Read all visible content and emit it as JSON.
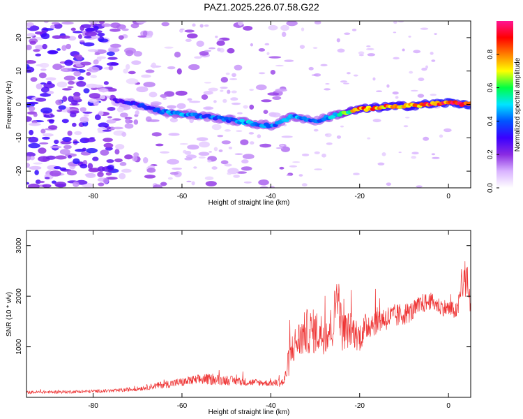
{
  "title": "PAZ1.2025.226.07.58.G22",
  "chart_data": [
    {
      "type": "heatmap",
      "xlabel": "Height of straight line (km)",
      "ylabel": "Frequency (Hz)",
      "xlim": [
        -95,
        5
      ],
      "ylim": [
        -25,
        25
      ],
      "xticks": [
        -80,
        -60,
        -40,
        -20,
        0
      ],
      "yticks": [
        -20,
        -10,
        0,
        10,
        20
      ],
      "colorbar": {
        "label": "Normalized spectral amplitude",
        "range": [
          0,
          1
        ],
        "ticks": [
          "0.0",
          "0.2",
          "0.4",
          "0.6",
          "0.8"
        ],
        "colors": [
          "#ffffff",
          "#d9b3ff",
          "#8a2be2",
          "#3a00ff",
          "#0055ff",
          "#00e5ff",
          "#00ff44",
          "#ffff00",
          "#ff7f00",
          "#ff0000",
          "#ff1493"
        ]
      },
      "ridge": {
        "x": [
          -75,
          -70,
          -65,
          -60,
          -55,
          -50,
          -45,
          -40,
          -35,
          -30,
          -25,
          -20,
          -15,
          -10,
          -5,
          0,
          5
        ],
        "y": [
          1,
          0,
          -2,
          -3,
          -3.5,
          -4.5,
          -5.5,
          -6.5,
          -3.5,
          -5,
          -3,
          -1.5,
          -0.8,
          -0.5,
          0,
          0.5,
          0
        ],
        "amplitude": [
          0.3,
          0.35,
          0.45,
          0.5,
          0.45,
          0.45,
          0.5,
          0.45,
          0.5,
          0.4,
          0.55,
          0.85,
          0.9,
          0.88,
          0.92,
          0.95,
          0.95
        ]
      }
    },
    {
      "type": "line",
      "xlabel": "Height of straight line (km)",
      "ylabel": "SNR (10 * v/v)",
      "xlim": [
        -95,
        5
      ],
      "ylim": [
        0,
        3300
      ],
      "xticks": [
        -80,
        -60,
        -40,
        -20,
        0
      ],
      "yticks": [
        1000,
        2000,
        3000
      ],
      "color": "#ee3333",
      "envelope": {
        "x": [
          -95,
          -85,
          -75,
          -70,
          -65,
          -60,
          -55,
          -50,
          -45,
          -40,
          -37,
          -36,
          -35,
          -32,
          -30,
          -28,
          -26,
          -25,
          -24,
          -22,
          -20,
          -18,
          -15,
          -12,
          -10,
          -8,
          -6,
          -4,
          -2,
          0,
          2,
          3,
          4,
          5
        ],
        "mean": [
          100,
          110,
          130,
          170,
          240,
          300,
          360,
          340,
          300,
          280,
          300,
          700,
          1000,
          1300,
          1300,
          1250,
          1400,
          2200,
          1300,
          1350,
          1200,
          1450,
          1550,
          1600,
          1650,
          1700,
          1850,
          1900,
          1800,
          1750,
          1700,
          2200,
          2400,
          1800
        ],
        "spread": [
          60,
          60,
          70,
          90,
          140,
          180,
          220,
          200,
          150,
          120,
          200,
          600,
          700,
          900,
          900,
          800,
          900,
          1000,
          800,
          700,
          600,
          600,
          500,
          500,
          450,
          400,
          400,
          350,
          350,
          350,
          350,
          600,
          900,
          400
        ]
      }
    }
  ]
}
